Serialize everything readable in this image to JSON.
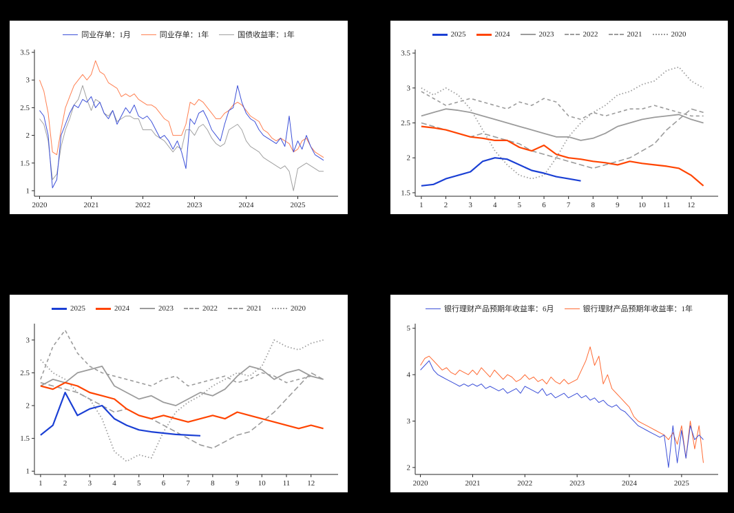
{
  "page": {
    "background": "#000000",
    "panel_background": "#ffffff",
    "axis_color": "#262626"
  },
  "chart_data": [
    {
      "id": "ncd-and-treasury-yield",
      "type": "line",
      "title": "",
      "xlabel": "",
      "ylabel": "",
      "xlim": [
        2019.9,
        2025.78
      ],
      "xticks": [
        2020,
        2021,
        2022,
        2023,
        2024,
        2025
      ],
      "ylim": [
        0.9,
        3.55
      ],
      "yticks": [
        1,
        1.5,
        2,
        2.5,
        3,
        3.5
      ],
      "legend_position": "top",
      "grid": false,
      "series": [
        {
          "name": "同业存单：1月",
          "color": "#3b4fd8",
          "width": 1,
          "legend_weight": 1.5,
          "style": "solid",
          "dasharray": "",
          "x0": 2020.0,
          "step": 0.0833333,
          "values": [
            2.45,
            2.35,
            2.0,
            1.05,
            1.2,
            2.0,
            2.2,
            2.4,
            2.55,
            2.5,
            2.65,
            2.6,
            2.7,
            2.5,
            2.6,
            2.4,
            2.3,
            2.45,
            2.2,
            2.35,
            2.5,
            2.4,
            2.55,
            2.35,
            2.3,
            2.35,
            2.25,
            2.1,
            1.95,
            2.0,
            1.9,
            1.75,
            1.9,
            1.7,
            1.4,
            2.3,
            2.2,
            2.4,
            2.45,
            2.3,
            2.1,
            2.0,
            1.9,
            2.2,
            2.45,
            2.5,
            2.9,
            2.6,
            2.4,
            2.3,
            2.25,
            2.1,
            2.0,
            1.95,
            1.9,
            1.85,
            1.95,
            1.8,
            2.35,
            1.7,
            1.9,
            1.75,
            2.0,
            1.8,
            1.65,
            1.6,
            1.55
          ]
        },
        {
          "name": "同业存单：1年",
          "color": "#ff7f50",
          "width": 1,
          "legend_weight": 1.5,
          "style": "solid",
          "dasharray": "",
          "x0": 2020.0,
          "step": 0.0833333,
          "values": [
            3.0,
            2.8,
            2.4,
            1.7,
            1.65,
            2.1,
            2.5,
            2.7,
            2.9,
            3.0,
            3.1,
            3.0,
            3.1,
            3.35,
            3.15,
            3.1,
            2.95,
            2.9,
            2.85,
            2.7,
            2.75,
            2.7,
            2.75,
            2.65,
            2.6,
            2.55,
            2.55,
            2.5,
            2.4,
            2.3,
            2.25,
            2.0,
            2.0,
            2.0,
            2.2,
            2.6,
            2.55,
            2.65,
            2.6,
            2.5,
            2.4,
            2.3,
            2.3,
            2.4,
            2.45,
            2.55,
            2.6,
            2.55,
            2.45,
            2.35,
            2.3,
            2.25,
            2.1,
            2.05,
            1.95,
            1.9,
            1.95,
            1.9,
            1.85,
            1.7,
            1.75,
            1.9,
            1.95,
            1.8,
            1.7,
            1.65,
            1.6
          ]
        },
        {
          "name": "国债收益率：1年",
          "color": "#a0a0a0",
          "width": 1,
          "legend_weight": 1.5,
          "style": "solid",
          "dasharray": "",
          "x0": 2020.0,
          "step": 0.0833333,
          "values": [
            2.3,
            2.2,
            1.9,
            1.2,
            1.3,
            1.8,
            2.1,
            2.3,
            2.55,
            2.65,
            2.9,
            2.65,
            2.45,
            2.65,
            2.6,
            2.4,
            2.35,
            2.45,
            2.25,
            2.3,
            2.35,
            2.35,
            2.3,
            2.3,
            2.1,
            2.1,
            2.1,
            2.0,
            1.95,
            1.9,
            1.8,
            1.7,
            1.8,
            1.75,
            2.1,
            2.1,
            2.0,
            2.15,
            2.2,
            2.1,
            1.95,
            1.85,
            1.8,
            1.85,
            2.1,
            2.15,
            2.2,
            2.1,
            1.9,
            1.8,
            1.75,
            1.7,
            1.6,
            1.55,
            1.5,
            1.45,
            1.4,
            1.45,
            1.35,
            1.0,
            1.4,
            1.45,
            1.5,
            1.45,
            1.4,
            1.35,
            1.35
          ]
        }
      ]
    },
    {
      "id": "ncd-1y-by-year",
      "type": "line",
      "title": "",
      "xlabel": "",
      "ylabel": "",
      "xlim": [
        0.75,
        13.1
      ],
      "xticks": [
        1,
        2,
        3,
        4,
        5,
        6,
        7,
        8,
        9,
        10,
        11,
        12
      ],
      "ylim": [
        1.45,
        3.55
      ],
      "yticks": [
        1.5,
        2,
        2.5,
        3,
        3.5
      ],
      "legend_position": "top",
      "grid": false,
      "series": [
        {
          "name": "2025",
          "color": "#1a3fd4",
          "width": 2.2,
          "legend_weight": 3,
          "style": "solid",
          "dasharray": "",
          "x0": 1,
          "step": 0.5,
          "values": [
            1.6,
            1.62,
            1.7,
            1.75,
            1.8,
            1.95,
            2.0,
            1.98,
            1.9,
            1.82,
            1.78,
            1.73,
            1.7,
            1.67
          ]
        },
        {
          "name": "2024",
          "color": "#ff4400",
          "width": 2.2,
          "legend_weight": 3,
          "style": "solid",
          "dasharray": "",
          "x0": 1,
          "step": 0.5,
          "values": [
            2.45,
            2.43,
            2.4,
            2.35,
            2.3,
            2.28,
            2.25,
            2.25,
            2.15,
            2.1,
            2.18,
            2.05,
            2.0,
            1.98,
            1.95,
            1.93,
            1.9,
            1.95,
            1.92,
            1.9,
            1.88,
            1.85,
            1.75,
            1.6
          ]
        },
        {
          "name": "2023",
          "color": "#9b9b9b",
          "width": 1.8,
          "legend_weight": 2,
          "style": "solid",
          "dasharray": "",
          "x0": 1,
          "step": 0.5,
          "values": [
            2.6,
            2.65,
            2.7,
            2.68,
            2.65,
            2.6,
            2.55,
            2.5,
            2.45,
            2.4,
            2.35,
            2.3,
            2.3,
            2.25,
            2.28,
            2.35,
            2.45,
            2.5,
            2.55,
            2.58,
            2.6,
            2.62,
            2.55,
            2.5
          ]
        },
        {
          "name": "2022",
          "color": "#9b9b9b",
          "width": 1.6,
          "legend_weight": 2,
          "style": "dashed",
          "dasharray": "8,4",
          "x0": 1,
          "step": 0.5,
          "values": [
            2.5,
            2.45,
            2.4,
            2.35,
            2.3,
            2.35,
            2.3,
            2.25,
            2.2,
            2.1,
            2.05,
            2.0,
            1.95,
            1.9,
            1.85,
            1.9,
            1.95,
            2.0,
            2.1,
            2.2,
            2.4,
            2.55,
            2.7,
            2.65
          ]
        },
        {
          "name": "2021",
          "color": "#9b9b9b",
          "width": 1.6,
          "legend_weight": 2,
          "style": "dashed",
          "dasharray": "5,4",
          "x0": 1,
          "step": 0.5,
          "values": [
            2.95,
            2.85,
            2.75,
            2.8,
            2.85,
            2.8,
            2.75,
            2.7,
            2.8,
            2.75,
            2.85,
            2.8,
            2.6,
            2.55,
            2.65,
            2.6,
            2.65,
            2.7,
            2.7,
            2.75,
            2.7,
            2.65,
            2.6,
            2.6
          ]
        },
        {
          "name": "2020",
          "color": "#9b9b9b",
          "width": 1.8,
          "legend_weight": 2,
          "style": "dotted",
          "dasharray": "1.5,3",
          "x0": 1,
          "step": 0.5,
          "values": [
            3.0,
            2.9,
            3.0,
            2.9,
            2.7,
            2.4,
            2.1,
            1.9,
            1.75,
            1.7,
            1.75,
            2.0,
            2.3,
            2.5,
            2.65,
            2.75,
            2.9,
            2.95,
            3.05,
            3.1,
            3.25,
            3.3,
            3.1,
            3.0
          ]
        }
      ]
    },
    {
      "id": "ncd-1m-by-year",
      "type": "line",
      "title": "",
      "xlabel": "",
      "ylabel": "",
      "xlim": [
        0.75,
        13.1
      ],
      "xticks": [
        1,
        2,
        3,
        4,
        5,
        6,
        7,
        8,
        9,
        10,
        11,
        12
      ],
      "ylim": [
        0.95,
        3.25
      ],
      "yticks": [
        1,
        1.5,
        2,
        2.5,
        3
      ],
      "legend_position": "top",
      "grid": false,
      "series": [
        {
          "name": "2025",
          "color": "#1a3fd4",
          "width": 2.2,
          "legend_weight": 3,
          "style": "solid",
          "dasharray": "",
          "x0": 1,
          "step": 0.5,
          "values": [
            1.55,
            1.7,
            2.2,
            1.85,
            1.95,
            2.0,
            1.8,
            1.7,
            1.63,
            1.6,
            1.58,
            1.56,
            1.55,
            1.54
          ]
        },
        {
          "name": "2024",
          "color": "#ff4400",
          "width": 2.2,
          "legend_weight": 3,
          "style": "solid",
          "dasharray": "",
          "x0": 1,
          "step": 0.5,
          "values": [
            2.3,
            2.25,
            2.35,
            2.3,
            2.2,
            2.15,
            2.1,
            1.95,
            1.85,
            1.8,
            1.85,
            1.8,
            1.75,
            1.8,
            1.85,
            1.8,
            1.9,
            1.85,
            1.8,
            1.75,
            1.7,
            1.65,
            1.7,
            1.65
          ]
        },
        {
          "name": "2023",
          "color": "#9b9b9b",
          "width": 1.8,
          "legend_weight": 2,
          "style": "solid",
          "dasharray": "",
          "x0": 1,
          "step": 0.5,
          "values": [
            2.3,
            2.4,
            2.35,
            2.5,
            2.55,
            2.6,
            2.3,
            2.2,
            2.1,
            2.15,
            2.05,
            2.0,
            2.1,
            2.2,
            2.15,
            2.25,
            2.45,
            2.6,
            2.55,
            2.4,
            2.5,
            2.55,
            2.45,
            2.4
          ]
        },
        {
          "name": "2022",
          "color": "#9b9b9b",
          "width": 1.6,
          "legend_weight": 2,
          "style": "dashed",
          "dasharray": "8,4",
          "x0": 1,
          "step": 0.5,
          "values": [
            2.35,
            2.3,
            2.25,
            2.2,
            2.1,
            2.0,
            1.9,
            1.95,
            1.85,
            1.8,
            1.7,
            1.6,
            1.5,
            1.4,
            1.35,
            1.45,
            1.55,
            1.6,
            1.75,
            1.9,
            2.1,
            2.3,
            2.5,
            2.4
          ]
        },
        {
          "name": "2021",
          "color": "#9b9b9b",
          "width": 1.6,
          "legend_weight": 2,
          "style": "dashed",
          "dasharray": "5,4",
          "x0": 1,
          "step": 0.5,
          "values": [
            2.4,
            2.9,
            3.15,
            2.8,
            2.6,
            2.5,
            2.45,
            2.4,
            2.35,
            2.3,
            2.4,
            2.45,
            2.3,
            2.35,
            2.4,
            2.45,
            2.35,
            2.4,
            2.5,
            2.45,
            2.35,
            2.4,
            2.45,
            2.4
          ]
        },
        {
          "name": "2020",
          "color": "#9b9b9b",
          "width": 1.8,
          "legend_weight": 2,
          "style": "dotted",
          "dasharray": "1.5,3",
          "x0": 1,
          "step": 0.5,
          "values": [
            2.7,
            2.5,
            2.4,
            2.2,
            2.1,
            1.8,
            1.3,
            1.15,
            1.25,
            1.2,
            1.6,
            1.9,
            2.05,
            2.15,
            2.3,
            2.4,
            2.5,
            2.45,
            2.6,
            3.0,
            2.9,
            2.85,
            2.95,
            3.0
          ]
        }
      ]
    },
    {
      "id": "wmp-expected-yield",
      "type": "line",
      "title": "",
      "xlabel": "",
      "ylabel": "",
      "xlim": [
        2019.9,
        2025.7
      ],
      "xticks": [
        2020,
        2021,
        2022,
        2023,
        2024,
        2025
      ],
      "ylim": [
        1.85,
        5.1
      ],
      "yticks": [
        2,
        3,
        4,
        5
      ],
      "legend_position": "top",
      "grid": false,
      "series": [
        {
          "name": "银行理财产品预期年收益率：6月",
          "color": "#3b4fd8",
          "width": 1,
          "legend_weight": 1.5,
          "style": "solid",
          "dasharray": "",
          "x0": 2020.0,
          "step": 0.0833333,
          "values": [
            4.1,
            4.2,
            4.3,
            4.1,
            4.0,
            3.95,
            3.9,
            3.85,
            3.8,
            3.75,
            3.8,
            3.75,
            3.8,
            3.75,
            3.8,
            3.7,
            3.75,
            3.7,
            3.65,
            3.7,
            3.6,
            3.65,
            3.7,
            3.6,
            3.75,
            3.7,
            3.65,
            3.6,
            3.7,
            3.55,
            3.6,
            3.5,
            3.55,
            3.6,
            3.5,
            3.55,
            3.6,
            3.5,
            3.55,
            3.45,
            3.5,
            3.4,
            3.45,
            3.35,
            3.3,
            3.35,
            3.25,
            3.2,
            3.1,
            3.0,
            2.9,
            2.85,
            2.8,
            2.75,
            2.7,
            2.65,
            2.7,
            2.0,
            2.9,
            2.1,
            2.8,
            2.2,
            2.9,
            2.6,
            2.7,
            2.6
          ]
        },
        {
          "name": "银行理财产品预期年收益率：1年",
          "color": "#ff6a33",
          "width": 1,
          "legend_weight": 1.5,
          "style": "solid",
          "dasharray": "",
          "x0": 2020.0,
          "step": 0.0833333,
          "values": [
            4.2,
            4.35,
            4.4,
            4.3,
            4.2,
            4.1,
            4.15,
            4.05,
            4.0,
            4.1,
            4.05,
            4.0,
            4.1,
            4.0,
            4.15,
            4.05,
            3.95,
            4.1,
            4.0,
            3.9,
            4.0,
            3.95,
            3.85,
            3.9,
            4.0,
            3.9,
            3.95,
            3.85,
            3.9,
            3.8,
            3.95,
            3.85,
            3.8,
            3.9,
            3.8,
            3.85,
            3.9,
            4.1,
            4.3,
            4.6,
            4.2,
            4.4,
            3.8,
            4.0,
            3.7,
            3.6,
            3.5,
            3.4,
            3.3,
            3.1,
            3.0,
            2.95,
            2.9,
            2.85,
            2.8,
            2.75,
            2.7,
            2.6,
            2.75,
            2.5,
            2.9,
            2.2,
            3.0,
            2.4,
            2.9,
            2.1
          ]
        }
      ]
    }
  ]
}
